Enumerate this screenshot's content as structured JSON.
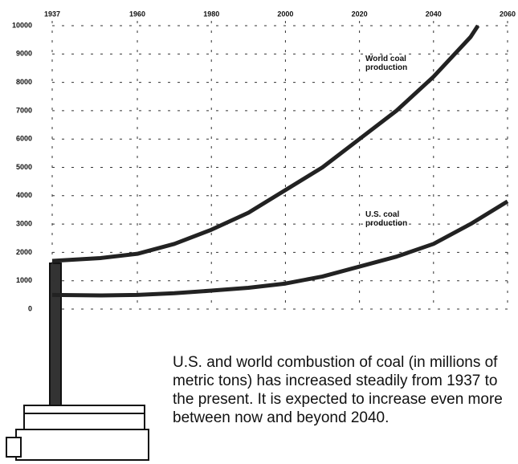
{
  "chart_data": {
    "type": "line",
    "caption": "U.S. and world combustion of coal (in millions of metric tons) has increased steadily from 1937 to the present. It is expected to increase even more between now and beyond 2040.",
    "xlim": [
      1937,
      2060
    ],
    "xticks": [
      1937,
      1960,
      1980,
      2000,
      2020,
      2040,
      2060
    ],
    "ylim": [
      0,
      10000
    ],
    "yticks": [
      0,
      1000,
      2000,
      3000,
      4000,
      5000,
      6000,
      7000,
      8000,
      9000,
      10000
    ],
    "grid": true,
    "series": [
      {
        "name": "World coal production",
        "color": "#222",
        "x": [
          1937,
          1950,
          1960,
          1970,
          1980,
          1990,
          2000,
          2010,
          2020,
          2030,
          2040,
          2050,
          2052
        ],
        "values": [
          1700,
          1800,
          1950,
          2300,
          2800,
          3400,
          4200,
          5000,
          6000,
          7000,
          8200,
          9600,
          10000
        ]
      },
      {
        "name": "U.S. coal production",
        "color": "#222",
        "x": [
          1937,
          1950,
          1960,
          1970,
          1980,
          1990,
          2000,
          2010,
          2020,
          2030,
          2040,
          2050,
          2060
        ],
        "values": [
          500,
          480,
          500,
          560,
          650,
          750,
          900,
          1150,
          1500,
          1850,
          2300,
          3000,
          3800
        ]
      }
    ]
  }
}
